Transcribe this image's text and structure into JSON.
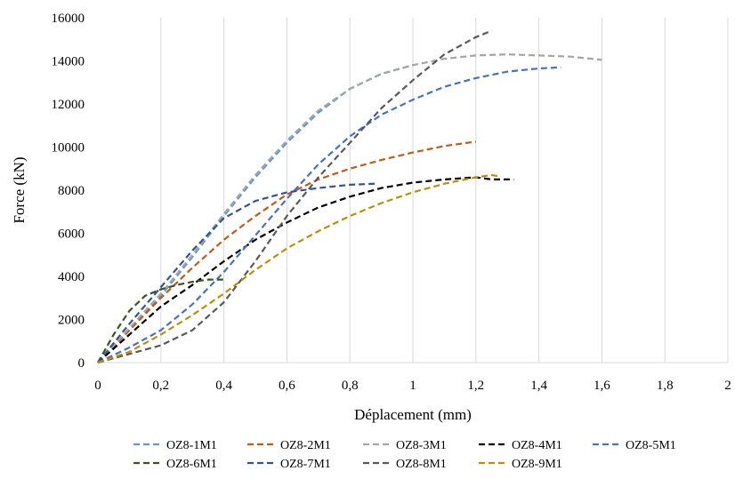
{
  "chart_data": {
    "type": "line",
    "title": "",
    "xlabel": "Déplacement (mm)",
    "ylabel": "Force  (kN)",
    "xlim": [
      0,
      2
    ],
    "ylim": [
      0,
      16000
    ],
    "x_ticks": [
      0,
      0.2,
      0.4,
      0.6,
      0.8,
      1,
      1.2,
      1.4,
      1.6,
      1.8,
      2
    ],
    "x_tick_labels": [
      "0",
      "0,2",
      "0,4",
      "0,6",
      "0,8",
      "1",
      "1,2",
      "1,4",
      "1,6",
      "1,8",
      "2"
    ],
    "y_ticks": [
      0,
      2000,
      4000,
      6000,
      8000,
      10000,
      12000,
      14000,
      16000
    ],
    "y_tick_labels": [
      "0",
      "2000",
      "4000",
      "6000",
      "8000",
      "10000",
      "12000",
      "14000",
      "16000"
    ],
    "grid": "vertical",
    "legend_position": "bottom",
    "line_style": "dashed",
    "series": [
      {
        "name": "OZ8-1M1",
        "color": "#5B9BD5",
        "x": [
          0,
          0.1,
          0.2,
          0.3,
          0.4,
          0.5,
          0.6,
          0.7,
          0.8,
          0.9,
          1.0
        ],
        "y": [
          0,
          1500,
          3100,
          4900,
          6800,
          8600,
          10200,
          11600,
          12700,
          13400,
          13800
        ]
      },
      {
        "name": "OZ8-2M1",
        "color": "#C55A11",
        "x": [
          0,
          0.1,
          0.2,
          0.3,
          0.4,
          0.5,
          0.6,
          0.7,
          0.8,
          0.9,
          1.0,
          1.1,
          1.2
        ],
        "y": [
          0,
          1500,
          3000,
          4400,
          5700,
          6800,
          7800,
          8500,
          9000,
          9400,
          9750,
          10050,
          10250
        ]
      },
      {
        "name": "OZ8-3M1",
        "color": "#A5A5A5",
        "x": [
          0,
          0.1,
          0.2,
          0.3,
          0.4,
          0.5,
          0.6,
          0.7,
          0.8,
          0.9,
          1.0,
          1.1,
          1.2,
          1.3,
          1.4,
          1.5,
          1.6
        ],
        "y": [
          0,
          1600,
          3200,
          5000,
          6900,
          8700,
          10300,
          11700,
          12700,
          13400,
          13800,
          14100,
          14250,
          14300,
          14250,
          14200,
          14050
        ]
      },
      {
        "name": "OZ8-4M1",
        "color": "#000000",
        "x": [
          0,
          0.1,
          0.2,
          0.3,
          0.4,
          0.5,
          0.6,
          0.7,
          0.8,
          0.9,
          1.0,
          1.1,
          1.2,
          1.25,
          1.32
        ],
        "y": [
          0,
          1300,
          2600,
          3600,
          4700,
          5700,
          6500,
          7200,
          7700,
          8100,
          8350,
          8500,
          8600,
          8500,
          8500
        ]
      },
      {
        "name": "OZ8-5M1",
        "color": "#4472C4",
        "x": [
          0,
          0.1,
          0.2,
          0.3,
          0.4,
          0.5,
          0.6,
          0.7,
          0.8,
          0.9,
          1.0,
          1.1,
          1.2,
          1.3,
          1.4,
          1.47
        ],
        "y": [
          0,
          700,
          1500,
          2700,
          4200,
          5900,
          7600,
          9200,
          10500,
          11500,
          12200,
          12800,
          13200,
          13500,
          13650,
          13700
        ]
      },
      {
        "name": "OZ8-6M1",
        "color": "#375623",
        "x": [
          0,
          0.05,
          0.1,
          0.15,
          0.2,
          0.25,
          0.3,
          0.35,
          0.4
        ],
        "y": [
          0,
          1300,
          2400,
          3100,
          3400,
          3600,
          3750,
          3850,
          3850
        ]
      },
      {
        "name": "OZ8-7M1",
        "color": "#2F5597",
        "x": [
          0,
          0.1,
          0.2,
          0.3,
          0.4,
          0.5,
          0.6,
          0.7,
          0.8,
          0.88
        ],
        "y": [
          0,
          1800,
          3500,
          5200,
          6700,
          7500,
          7900,
          8100,
          8250,
          8300
        ]
      },
      {
        "name": "OZ8-8M1",
        "color": "#595959",
        "x": [
          0,
          0.1,
          0.2,
          0.3,
          0.4,
          0.5,
          0.6,
          0.7,
          0.8,
          0.9,
          1.0,
          1.1,
          1.2,
          1.25
        ],
        "y": [
          0,
          400,
          800,
          1500,
          2800,
          4700,
          6800,
          8600,
          10200,
          11800,
          13100,
          14300,
          15100,
          15400
        ]
      },
      {
        "name": "OZ8-9M1",
        "color": "#BF8F00",
        "x": [
          0,
          0.1,
          0.2,
          0.3,
          0.4,
          0.5,
          0.6,
          0.7,
          0.8,
          0.9,
          1.0,
          1.1,
          1.2,
          1.25,
          1.27
        ],
        "y": [
          0,
          500,
          1300,
          2200,
          3200,
          4300,
          5300,
          6100,
          6800,
          7400,
          7900,
          8300,
          8600,
          8700,
          8650
        ]
      }
    ]
  }
}
